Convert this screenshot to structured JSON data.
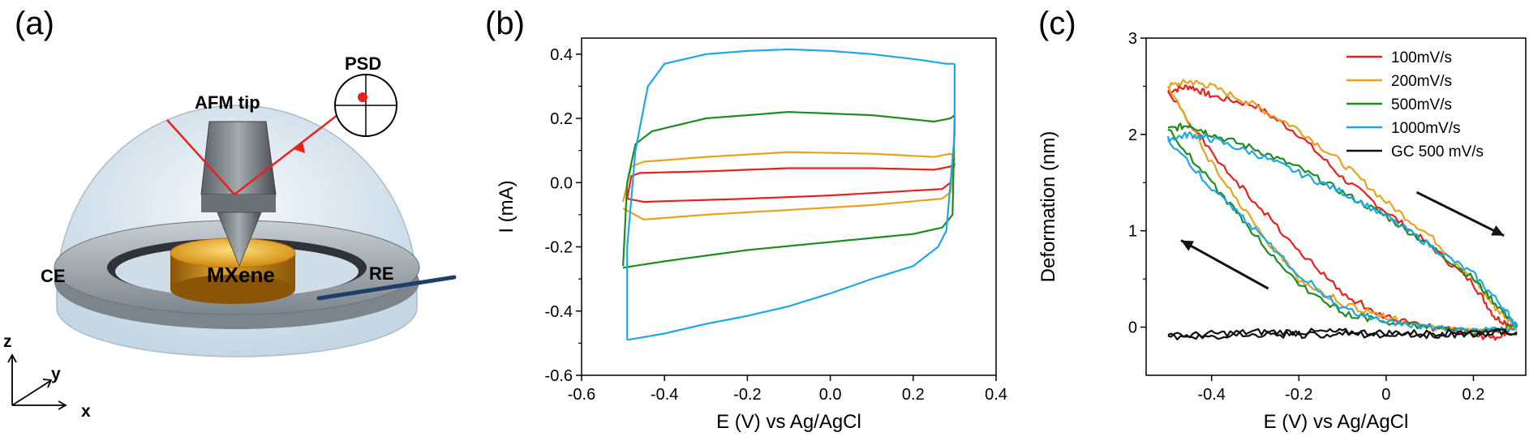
{
  "panels": {
    "a": {
      "label": "(a)",
      "labels": {
        "psd": "PSD",
        "afm_tip": "AFM tip",
        "ce": "CE",
        "re": "RE",
        "mxene": "MXene",
        "z": "z",
        "y": "y",
        "x": "x"
      },
      "colors": {
        "laser": "#e8201e",
        "dome": "#c9dbe8",
        "ring": "#9ea6ae",
        "mxene": "#d99a1a",
        "electrode": "#1f3d6b"
      }
    }
  },
  "chart_data": [
    {
      "panel": "(b)",
      "type": "line",
      "xlabel": "E (V) vs Ag/AgCl",
      "ylabel": "I (mA)",
      "xlim": [
        -0.6,
        0.4
      ],
      "ylim": [
        -0.6,
        0.45
      ],
      "xticks": [
        -0.6,
        -0.4,
        -0.2,
        0.0,
        0.2,
        0.4
      ],
      "yticks": [
        -0.6,
        -0.4,
        -0.2,
        0.0,
        0.2,
        0.4
      ],
      "xtick_labels": [
        "-0.6",
        "-0.4",
        "-0.2",
        "0.0",
        "0.2",
        "0.4"
      ],
      "ytick_labels": [
        "-0.6",
        "-0.4",
        "-0.2",
        "0.0",
        "0.2",
        "0.4"
      ],
      "grid": false,
      "series": [
        {
          "color": "#e8201e",
          "anodic": [
            [
              -0.49,
              -0.05
            ],
            [
              -0.48,
              0.02
            ],
            [
              -0.46,
              0.03
            ],
            [
              -0.3,
              0.035
            ],
            [
              -0.1,
              0.045
            ],
            [
              0.1,
              0.045
            ],
            [
              0.25,
              0.04
            ],
            [
              0.29,
              0.05
            ],
            [
              0.3,
              0.06
            ]
          ],
          "cathodic": [
            [
              0.3,
              0.06
            ],
            [
              0.29,
              0.0
            ],
            [
              0.27,
              -0.02
            ],
            [
              0.2,
              -0.025
            ],
            [
              0.0,
              -0.04
            ],
            [
              -0.2,
              -0.05
            ],
            [
              -0.45,
              -0.06
            ],
            [
              -0.49,
              -0.05
            ]
          ]
        },
        {
          "color": "#e8a31c",
          "anodic": [
            [
              -0.5,
              -0.06
            ],
            [
              -0.48,
              0.05
            ],
            [
              -0.45,
              0.065
            ],
            [
              -0.3,
              0.08
            ],
            [
              -0.1,
              0.095
            ],
            [
              0.1,
              0.09
            ],
            [
              0.25,
              0.08
            ],
            [
              0.29,
              0.09
            ],
            [
              0.3,
              0.08
            ]
          ],
          "cathodic": [
            [
              0.3,
              0.08
            ],
            [
              0.29,
              -0.03
            ],
            [
              0.27,
              -0.05
            ],
            [
              0.1,
              -0.07
            ],
            [
              -0.1,
              -0.085
            ],
            [
              -0.3,
              -0.1
            ],
            [
              -0.45,
              -0.115
            ],
            [
              -0.5,
              -0.08
            ]
          ]
        },
        {
          "color": "#1e8c1e",
          "anodic": [
            [
              -0.5,
              -0.26
            ],
            [
              -0.49,
              0.0
            ],
            [
              -0.47,
              0.12
            ],
            [
              -0.43,
              0.16
            ],
            [
              -0.3,
              0.2
            ],
            [
              -0.1,
              0.22
            ],
            [
              0.1,
              0.21
            ],
            [
              0.25,
              0.19
            ],
            [
              0.29,
              0.2
            ],
            [
              0.3,
              0.21
            ]
          ],
          "cathodic": [
            [
              0.3,
              0.21
            ],
            [
              0.295,
              -0.1
            ],
            [
              0.27,
              -0.14
            ],
            [
              0.2,
              -0.16
            ],
            [
              0.0,
              -0.185
            ],
            [
              -0.2,
              -0.21
            ],
            [
              -0.4,
              -0.245
            ],
            [
              -0.5,
              -0.265
            ]
          ]
        },
        {
          "color": "#1ea7e8",
          "anodic": [
            [
              -0.49,
              -0.49
            ],
            [
              -0.49,
              -0.2
            ],
            [
              -0.47,
              0.1
            ],
            [
              -0.44,
              0.3
            ],
            [
              -0.4,
              0.37
            ],
            [
              -0.3,
              0.4
            ],
            [
              -0.2,
              0.41
            ],
            [
              -0.1,
              0.415
            ],
            [
              0.0,
              0.41
            ],
            [
              0.1,
              0.4
            ],
            [
              0.2,
              0.385
            ],
            [
              0.28,
              0.37
            ],
            [
              0.3,
              0.37
            ]
          ],
          "cathodic": [
            [
              0.3,
              0.37
            ],
            [
              0.3,
              0.15
            ],
            [
              0.29,
              0.0
            ],
            [
              0.28,
              -0.15
            ],
            [
              0.26,
              -0.2
            ],
            [
              0.2,
              -0.26
            ],
            [
              0.1,
              -0.3
            ],
            [
              0.0,
              -0.345
            ],
            [
              -0.1,
              -0.385
            ],
            [
              -0.2,
              -0.415
            ],
            [
              -0.3,
              -0.44
            ],
            [
              -0.4,
              -0.47
            ],
            [
              -0.49,
              -0.49
            ]
          ]
        }
      ]
    },
    {
      "panel": "(c)",
      "type": "line",
      "xlabel": "E (V) vs Ag/AgCl",
      "ylabel": "Deformation (nm)",
      "xlim": [
        -0.55,
        0.32
      ],
      "ylim": [
        -0.5,
        3.0
      ],
      "xticks": [
        -0.4,
        -0.2,
        0.0,
        0.2
      ],
      "yticks": [
        0,
        1,
        2,
        3
      ],
      "xtick_labels": [
        "-0.4",
        "-0.2",
        "0",
        "0.2"
      ],
      "ytick_labels": [
        "0",
        "1",
        "2",
        "3"
      ],
      "grid": false,
      "legend_placement": "top-right",
      "series": [
        {
          "name": "100mV/s",
          "color": "#e8201e",
          "forward": [
            [
              -0.5,
              2.45
            ],
            [
              -0.45,
              2.5
            ],
            [
              -0.4,
              2.4
            ],
            [
              -0.3,
              2.3
            ],
            [
              -0.2,
              2.0
            ],
            [
              -0.1,
              1.55
            ],
            [
              0.0,
              1.2
            ],
            [
              0.1,
              0.85
            ],
            [
              0.2,
              0.45
            ],
            [
              0.25,
              0.1
            ],
            [
              0.3,
              0.0
            ]
          ],
          "backward": [
            [
              0.3,
              0.0
            ],
            [
              0.25,
              -0.1
            ],
            [
              0.2,
              -0.1
            ],
            [
              0.1,
              0.0
            ],
            [
              0.0,
              0.1
            ],
            [
              -0.1,
              0.35
            ],
            [
              -0.2,
              0.8
            ],
            [
              -0.3,
              1.3
            ],
            [
              -0.4,
              1.8
            ],
            [
              -0.5,
              2.45
            ]
          ]
        },
        {
          "name": "200mV/s",
          "color": "#e8a31c",
          "forward": [
            [
              -0.5,
              2.5
            ],
            [
              -0.45,
              2.55
            ],
            [
              -0.4,
              2.5
            ],
            [
              -0.3,
              2.3
            ],
            [
              -0.2,
              2.05
            ],
            [
              -0.1,
              1.7
            ],
            [
              0.0,
              1.3
            ],
            [
              0.1,
              0.95
            ],
            [
              0.2,
              0.5
            ],
            [
              0.25,
              0.2
            ],
            [
              0.3,
              0.0
            ]
          ],
          "backward": [
            [
              0.3,
              0.0
            ],
            [
              0.2,
              -0.05
            ],
            [
              0.1,
              0.0
            ],
            [
              0.0,
              0.1
            ],
            [
              -0.1,
              0.25
            ],
            [
              -0.2,
              0.5
            ],
            [
              -0.3,
              1.05
            ],
            [
              -0.4,
              1.7
            ],
            [
              -0.5,
              2.5
            ]
          ]
        },
        {
          "name": "500mV/s",
          "color": "#1e8c1e",
          "forward": [
            [
              -0.5,
              2.05
            ],
            [
              -0.45,
              2.1
            ],
            [
              -0.4,
              2.0
            ],
            [
              -0.3,
              1.85
            ],
            [
              -0.2,
              1.65
            ],
            [
              -0.1,
              1.4
            ],
            [
              0.0,
              1.15
            ],
            [
              0.1,
              0.85
            ],
            [
              0.2,
              0.5
            ],
            [
              0.27,
              0.15
            ],
            [
              0.3,
              0.0
            ]
          ],
          "backward": [
            [
              0.3,
              0.0
            ],
            [
              0.2,
              -0.05
            ],
            [
              0.1,
              0.0
            ],
            [
              0.0,
              0.05
            ],
            [
              -0.1,
              0.15
            ],
            [
              -0.2,
              0.45
            ],
            [
              -0.3,
              0.95
            ],
            [
              -0.4,
              1.5
            ],
            [
              -0.5,
              2.05
            ]
          ]
        },
        {
          "name": "1000mV/s",
          "color": "#1ea7e8",
          "forward": [
            [
              -0.5,
              1.95
            ],
            [
              -0.45,
              2.0
            ],
            [
              -0.4,
              1.95
            ],
            [
              -0.3,
              1.8
            ],
            [
              -0.2,
              1.6
            ],
            [
              -0.1,
              1.4
            ],
            [
              0.0,
              1.15
            ],
            [
              0.1,
              0.85
            ],
            [
              0.2,
              0.55
            ],
            [
              0.27,
              0.2
            ],
            [
              0.3,
              0.0
            ]
          ],
          "backward": [
            [
              0.3,
              0.0
            ],
            [
              0.2,
              -0.05
            ],
            [
              0.1,
              0.0
            ],
            [
              0.0,
              0.05
            ],
            [
              -0.1,
              0.2
            ],
            [
              -0.2,
              0.55
            ],
            [
              -0.3,
              1.0
            ],
            [
              -0.4,
              1.45
            ],
            [
              -0.5,
              1.95
            ]
          ]
        },
        {
          "name": "GC 500 mV/s",
          "color": "#111111",
          "forward": [
            [
              -0.5,
              -0.1
            ],
            [
              -0.4,
              -0.07
            ],
            [
              -0.3,
              -0.05
            ],
            [
              -0.2,
              -0.05
            ],
            [
              -0.1,
              -0.05
            ],
            [
              0.0,
              -0.06
            ],
            [
              0.1,
              -0.06
            ],
            [
              0.2,
              -0.05
            ],
            [
              0.3,
              -0.05
            ]
          ],
          "backward": [
            [
              0.3,
              -0.05
            ],
            [
              0.2,
              -0.07
            ],
            [
              0.1,
              -0.08
            ],
            [
              0.0,
              -0.08
            ],
            [
              -0.1,
              -0.07
            ],
            [
              -0.2,
              -0.08
            ],
            [
              -0.3,
              -0.07
            ],
            [
              -0.4,
              -0.1
            ],
            [
              -0.5,
              -0.09
            ]
          ]
        }
      ],
      "arrows": [
        {
          "from": [
            0.07,
            1.4
          ],
          "to": [
            0.27,
            0.95
          ]
        },
        {
          "from": [
            -0.27,
            0.4
          ],
          "to": [
            -0.47,
            0.9
          ]
        }
      ]
    }
  ],
  "panel_labels": {
    "b": "(b)",
    "c": "(c)"
  }
}
